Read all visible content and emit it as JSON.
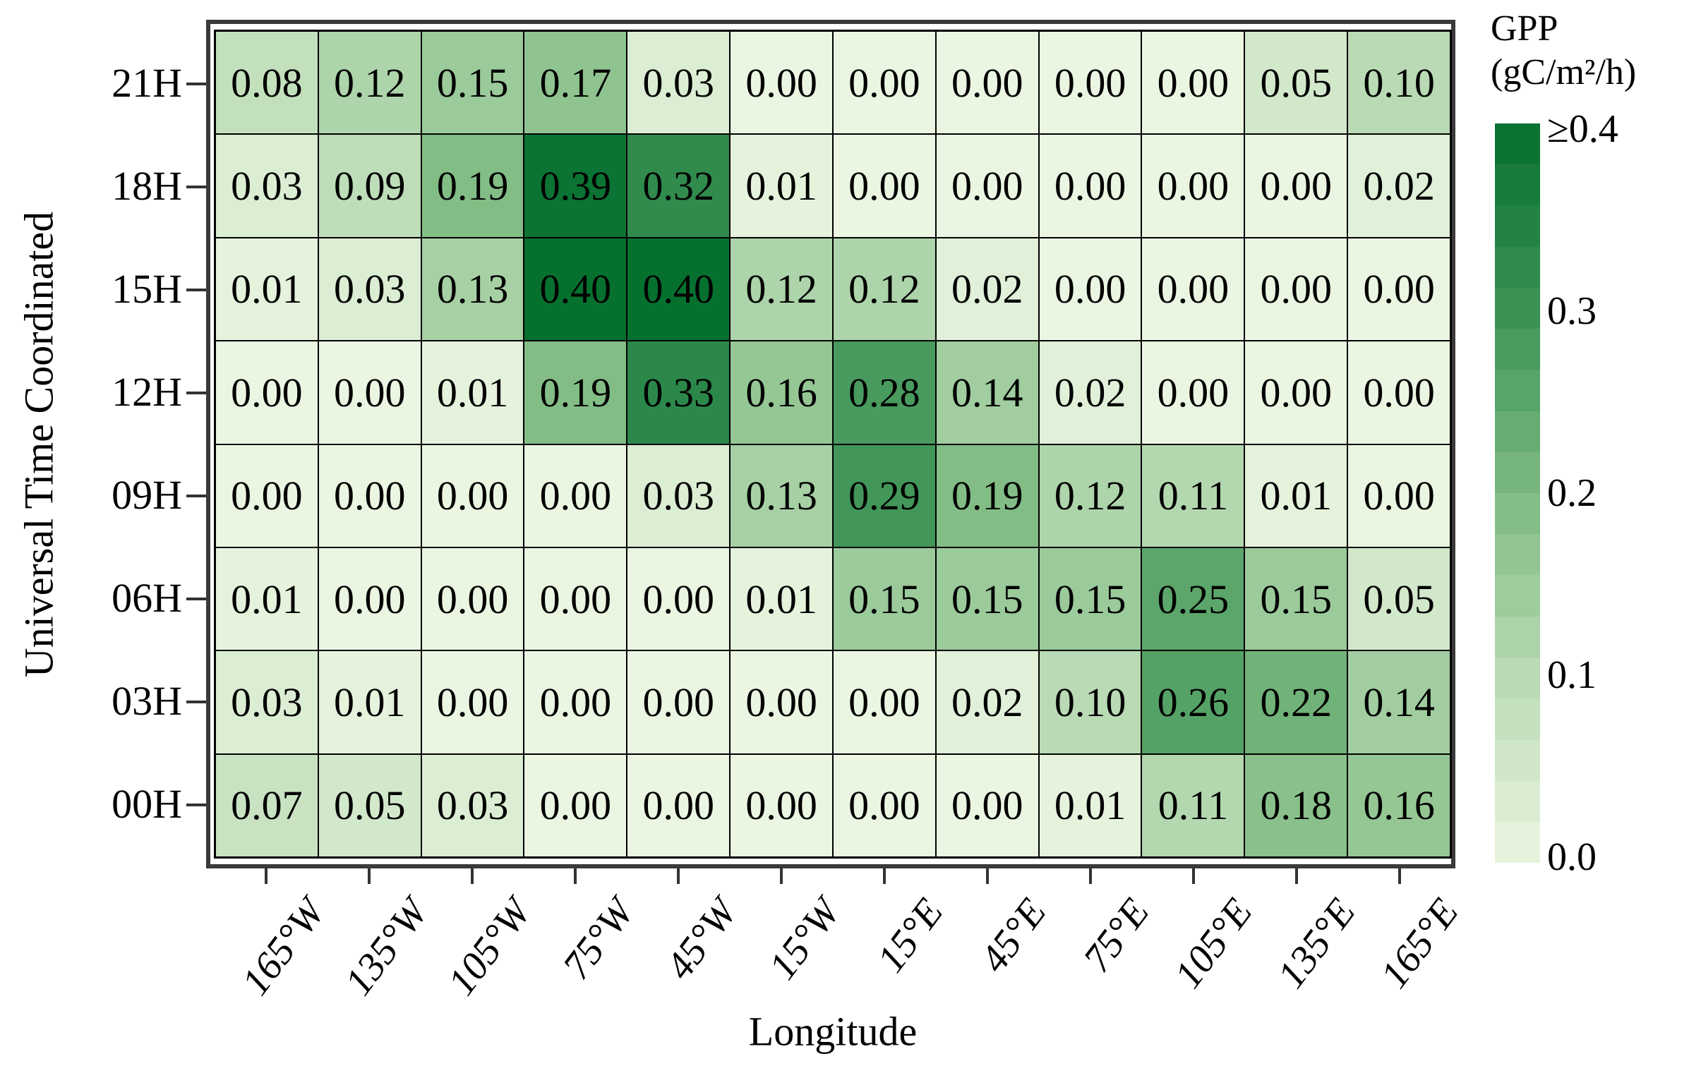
{
  "figure": {
    "xlabel": "Longitude",
    "ylabel": "Universal Time Coordinated",
    "colorbar": {
      "title_line1": "GPP",
      "title_line2": "(gC/m²/h)",
      "tick_labels": [
        "≥0.4",
        "0.3",
        "0.2",
        "0.1",
        "0.0"
      ],
      "n_steps": 18,
      "position": "right"
    }
  },
  "chart_data": {
    "type": "heatmap",
    "x_axis_label": "Longitude",
    "y_axis_label": "Universal Time Coordinated",
    "x_categories": [
      "165°W",
      "135°W",
      "105°W",
      "75°W",
      "45°W",
      "15°W",
      "15°E",
      "45°E",
      "75°E",
      "105°E",
      "135°E",
      "165°E"
    ],
    "y_categories": [
      "21H",
      "18H",
      "15H",
      "12H",
      "09H",
      "06H",
      "03H",
      "00H"
    ],
    "values": [
      [
        0.08,
        0.12,
        0.15,
        0.17,
        0.03,
        0.0,
        0.0,
        0.0,
        0.0,
        0.0,
        0.05,
        0.1
      ],
      [
        0.03,
        0.09,
        0.19,
        0.39,
        0.32,
        0.01,
        0.0,
        0.0,
        0.0,
        0.0,
        0.0,
        0.02
      ],
      [
        0.01,
        0.03,
        0.13,
        0.4,
        0.4,
        0.12,
        0.12,
        0.02,
        0.0,
        0.0,
        0.0,
        0.0
      ],
      [
        0.0,
        0.0,
        0.01,
        0.19,
        0.33,
        0.16,
        0.28,
        0.14,
        0.02,
        0.0,
        0.0,
        0.0
      ],
      [
        0.0,
        0.0,
        0.0,
        0.0,
        0.03,
        0.13,
        0.29,
        0.19,
        0.12,
        0.11,
        0.01,
        0.0
      ],
      [
        0.01,
        0.0,
        0.0,
        0.0,
        0.0,
        0.01,
        0.15,
        0.15,
        0.15,
        0.25,
        0.15,
        0.05
      ],
      [
        0.03,
        0.01,
        0.0,
        0.0,
        0.0,
        0.0,
        0.0,
        0.02,
        0.1,
        0.26,
        0.22,
        0.14
      ],
      [
        0.07,
        0.05,
        0.03,
        0.0,
        0.0,
        0.0,
        0.0,
        0.0,
        0.01,
        0.11,
        0.18,
        0.16
      ]
    ],
    "value_decimals": 2,
    "color_scale": {
      "min": 0.0,
      "max": 0.4,
      "max_label": "≥0.4",
      "ramp": [
        "#eaf6e2",
        "#b9dab4",
        "#7dba81",
        "#3b9255",
        "#06702f"
      ]
    },
    "colors": {
      "frame": "#3a3a3a",
      "gridline": "#000000",
      "tick": "#333333",
      "cell_text": "#000000",
      "background": "#ffffff"
    },
    "grid": "on",
    "legend_position": "right"
  }
}
